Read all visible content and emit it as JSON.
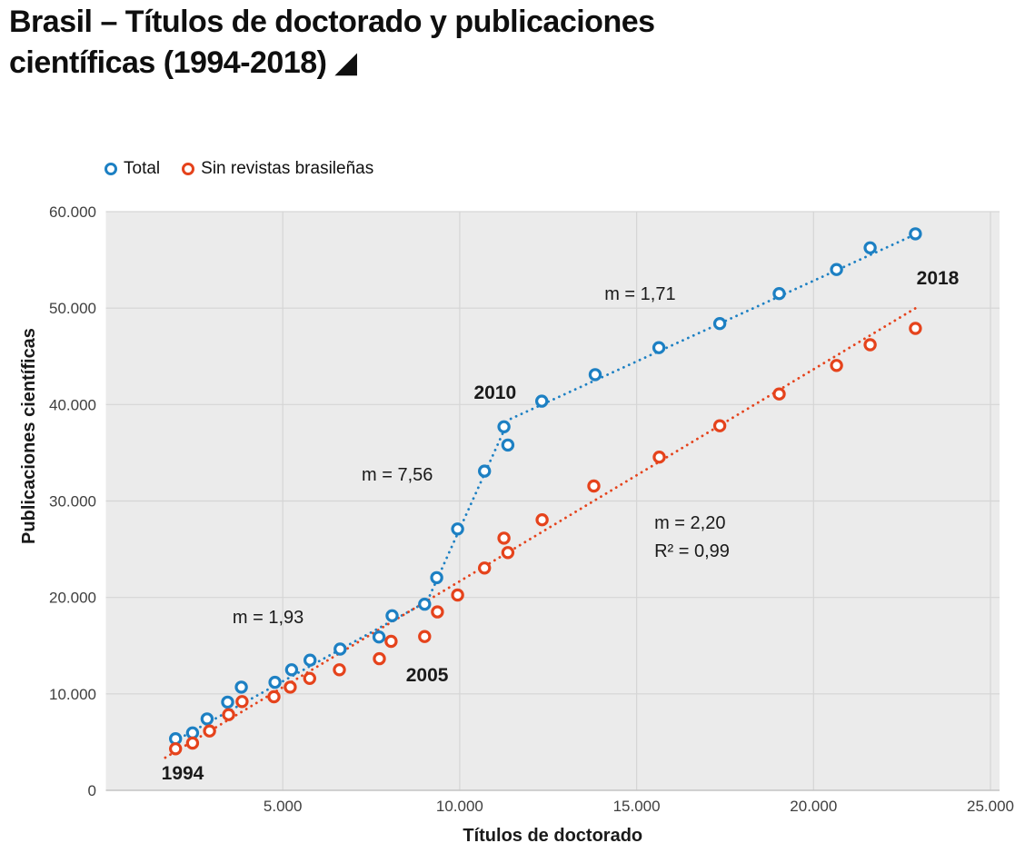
{
  "page": {
    "title_line1": "Brasil – Títulos de doctorado y publicaciones",
    "title_line2": "científicas (1994-2018)",
    "title_icon": "◢"
  },
  "legend": {
    "items": [
      {
        "label": "Total",
        "color": "#1d80c3"
      },
      {
        "label": "Sin revistas brasileñas",
        "color": "#e5431c"
      }
    ]
  },
  "chart_data": {
    "type": "scatter",
    "title": "Brasil – Títulos de doctorado y publicaciones científicas (1994-2018)",
    "xlabel": "Títulos de doctorado",
    "ylabel": "Publicaciones científicas",
    "xlim": [
      0,
      25250
    ],
    "ylim": [
      0,
      60000
    ],
    "grid": true,
    "legend_position": "top-left",
    "colors": {
      "total": "#1d80c3",
      "sin_revistas": "#e5431c",
      "plot_bg": "#ebebeb",
      "gridline": "#d5d5d5",
      "axis_line": "#c4c4c4",
      "tick_text": "#3f3f3f",
      "text": "#1a1a1a"
    },
    "x_ticks": [
      {
        "value": 5000,
        "label": "5.000"
      },
      {
        "value": 10000,
        "label": "10.000"
      },
      {
        "value": 15000,
        "label": "15.000"
      },
      {
        "value": 20000,
        "label": "20.000"
      },
      {
        "value": 25000,
        "label": "25.000"
      }
    ],
    "y_ticks": [
      {
        "value": 0,
        "label": "0"
      },
      {
        "value": 10000,
        "label": "10.000"
      },
      {
        "value": 20000,
        "label": "20.000"
      },
      {
        "value": 30000,
        "label": "30.000"
      },
      {
        "value": 40000,
        "label": "40.000"
      },
      {
        "value": 50000,
        "label": "50.000"
      },
      {
        "value": 60000,
        "label": "60.000"
      }
    ],
    "series": [
      {
        "name": "Total",
        "color": "#1d80c3",
        "points": [
          {
            "year": 1994,
            "x": 1970,
            "y": 5350
          },
          {
            "year": 1995,
            "x": 2450,
            "y": 5950
          },
          {
            "year": 1996,
            "x": 2860,
            "y": 7400
          },
          {
            "year": 1997,
            "x": 3440,
            "y": 9150
          },
          {
            "year": 1998,
            "x": 3830,
            "y": 10700
          },
          {
            "year": 1999,
            "x": 4780,
            "y": 11200
          },
          {
            "year": 2000,
            "x": 5250,
            "y": 12500
          },
          {
            "year": 2001,
            "x": 5770,
            "y": 13500
          },
          {
            "year": 2002,
            "x": 6620,
            "y": 14650
          },
          {
            "year": 2003,
            "x": 7720,
            "y": 15900
          },
          {
            "year": 2004,
            "x": 8090,
            "y": 18100
          },
          {
            "year": 2005,
            "x": 9010,
            "y": 19300
          },
          {
            "year": 2006,
            "x": 9350,
            "y": 22050
          },
          {
            "year": 2007,
            "x": 9940,
            "y": 27100
          },
          {
            "year": 2008,
            "x": 10700,
            "y": 33100
          },
          {
            "year": 2009,
            "x": 11360,
            "y": 35800
          },
          {
            "year": 2010,
            "x": 11250,
            "y": 37700
          },
          {
            "year": 2011,
            "x": 12320,
            "y": 40350
          },
          {
            "year": 2012,
            "x": 13830,
            "y": 43100
          },
          {
            "year": 2013,
            "x": 15630,
            "y": 45900
          },
          {
            "year": 2014,
            "x": 17350,
            "y": 48400
          },
          {
            "year": 2015,
            "x": 19030,
            "y": 51500
          },
          {
            "year": 2016,
            "x": 20650,
            "y": 54000
          },
          {
            "year": 2017,
            "x": 21600,
            "y": 56250
          },
          {
            "year": 2018,
            "x": 22880,
            "y": 57700
          }
        ]
      },
      {
        "name": "Sin revistas brasileñas",
        "color": "#e5431c",
        "points": [
          {
            "year": 1994,
            "x": 1970,
            "y": 4300
          },
          {
            "year": 1995,
            "x": 2450,
            "y": 4900
          },
          {
            "year": 1996,
            "x": 2930,
            "y": 6150
          },
          {
            "year": 1997,
            "x": 3470,
            "y": 7850
          },
          {
            "year": 1998,
            "x": 3850,
            "y": 9200
          },
          {
            "year": 1999,
            "x": 4750,
            "y": 9700
          },
          {
            "year": 2000,
            "x": 5210,
            "y": 10700
          },
          {
            "year": 2001,
            "x": 5760,
            "y": 11600
          },
          {
            "year": 2002,
            "x": 6600,
            "y": 12500
          },
          {
            "year": 2003,
            "x": 7730,
            "y": 13650
          },
          {
            "year": 2004,
            "x": 8060,
            "y": 15450
          },
          {
            "year": 2005,
            "x": 9010,
            "y": 15950
          },
          {
            "year": 2006,
            "x": 9370,
            "y": 18500
          },
          {
            "year": 2007,
            "x": 9940,
            "y": 20250
          },
          {
            "year": 2008,
            "x": 10700,
            "y": 23050
          },
          {
            "year": 2009,
            "x": 11360,
            "y": 24650
          },
          {
            "year": 2010,
            "x": 11250,
            "y": 26150
          },
          {
            "year": 2011,
            "x": 12330,
            "y": 28050
          },
          {
            "year": 2012,
            "x": 13790,
            "y": 31550
          },
          {
            "year": 2013,
            "x": 15640,
            "y": 34550
          },
          {
            "year": 2014,
            "x": 17350,
            "y": 37800
          },
          {
            "year": 2015,
            "x": 19030,
            "y": 41100
          },
          {
            "year": 2016,
            "x": 20650,
            "y": 44050
          },
          {
            "year": 2017,
            "x": 21600,
            "y": 46200
          },
          {
            "year": 2018,
            "x": 22880,
            "y": 47900
          }
        ]
      }
    ],
    "trend_lines": [
      {
        "series": "Total",
        "style": "dotted",
        "color": "#1d80c3",
        "vertices": [
          [
            1940,
            5090
          ],
          [
            9080,
            19590
          ],
          [
            11390,
            38430
          ],
          [
            22870,
            57640
          ]
        ]
      },
      {
        "series": "Sin revistas brasileñas",
        "style": "dotted",
        "color": "#e5431c",
        "vertices": [
          [
            1680,
            3390
          ],
          [
            22890,
            50010
          ]
        ]
      }
    ],
    "annotations": [
      {
        "text": "1994",
        "x": 2170,
        "y": 1800,
        "anchor": "middle",
        "type": "year"
      },
      {
        "text": "2005",
        "x": 9080,
        "y": 11960,
        "anchor": "middle",
        "type": "year"
      },
      {
        "text": "2010",
        "x": 11000,
        "y": 41250,
        "anchor": "middle",
        "type": "year"
      },
      {
        "text": "2018",
        "x": 23510,
        "y": 53120,
        "anchor": "middle",
        "type": "year"
      },
      {
        "text": "m = 1,93",
        "x": 3580,
        "y": 17990,
        "anchor": "start",
        "type": "stat"
      },
      {
        "text": "m = 7,56",
        "x": 7230,
        "y": 32780,
        "anchor": "start",
        "type": "stat"
      },
      {
        "text": "m = 1,71",
        "x": 14090,
        "y": 51520,
        "anchor": "start",
        "type": "stat"
      },
      {
        "text": "m = 2,20",
        "x": 15500,
        "y": 27790,
        "anchor": "start",
        "type": "stat"
      },
      {
        "text": "R² = 0,99",
        "x": 15500,
        "y": 24870,
        "anchor": "start",
        "type": "stat"
      }
    ]
  }
}
